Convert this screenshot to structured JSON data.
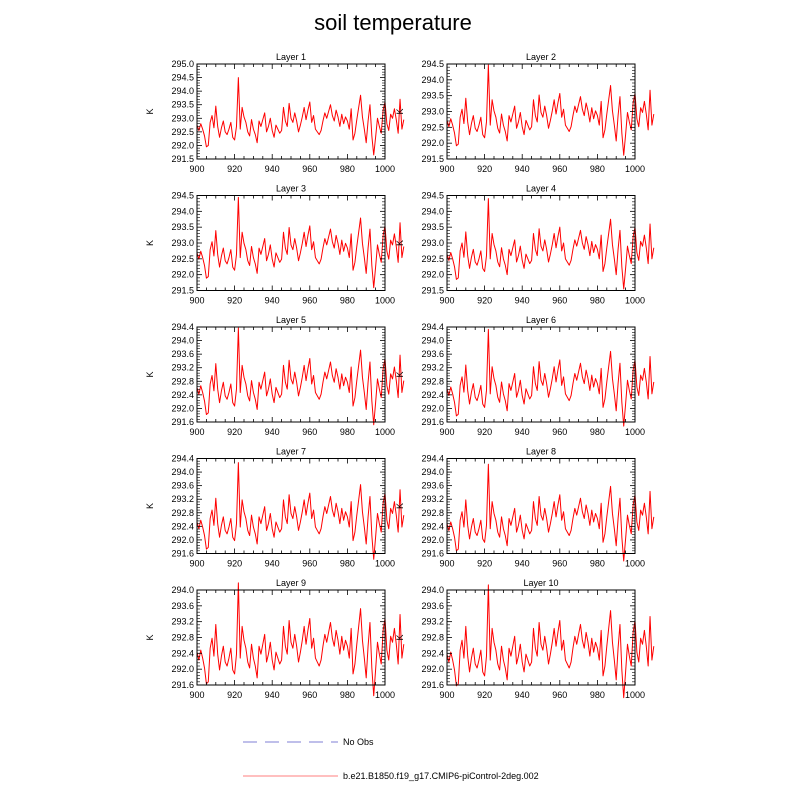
{
  "figure": {
    "title": "soil temperature",
    "series_color": "#ff0000",
    "obs_color": "#9999dd"
  },
  "legend": {
    "entries": [
      {
        "label": "No Obs",
        "style": "dashed",
        "color": "#9999dd"
      },
      {
        "label": "b.e21.B1850.f19_g17.CMIP6-piControl-2deg.002",
        "style": "solid",
        "color": "#ff9999"
      }
    ]
  },
  "chart_data": [
    {
      "type": "line",
      "title": "Layer 1",
      "xlabel": "",
      "ylabel": "K",
      "xlim": [
        900,
        1000
      ],
      "ylim": [
        291.5,
        295.0
      ],
      "xticks": [
        900,
        920,
        940,
        960,
        980,
        1000
      ],
      "yticks": [
        "291.5",
        "292.0",
        "292.5",
        "293.0",
        "293.5",
        "294.0",
        "294.5",
        "295.0"
      ],
      "offset": 0.0
    },
    {
      "type": "line",
      "title": "Layer 2",
      "xlabel": "",
      "ylabel": "K",
      "xlim": [
        900,
        1000
      ],
      "ylim": [
        291.5,
        294.5
      ],
      "xticks": [
        900,
        920,
        940,
        960,
        980,
        1000
      ],
      "yticks": [
        "291.5",
        "292.0",
        "292.5",
        "293.0",
        "293.5",
        "294.0",
        "294.5"
      ],
      "offset": -0.03
    },
    {
      "type": "line",
      "title": "Layer 3",
      "xlabel": "",
      "ylabel": "K",
      "xlim": [
        900,
        1000
      ],
      "ylim": [
        291.5,
        294.5
      ],
      "xticks": [
        900,
        920,
        940,
        960,
        980,
        1000
      ],
      "yticks": [
        "291.5",
        "292.0",
        "292.5",
        "293.0",
        "293.5",
        "294.0",
        "294.5"
      ],
      "offset": -0.06
    },
    {
      "type": "line",
      "title": "Layer 4",
      "xlabel": "",
      "ylabel": "K",
      "xlim": [
        900,
        1000
      ],
      "ylim": [
        291.5,
        294.5
      ],
      "xticks": [
        900,
        920,
        940,
        960,
        980,
        1000
      ],
      "yticks": [
        "291.5",
        "292.0",
        "292.5",
        "293.0",
        "293.5",
        "294.0",
        "294.5"
      ],
      "offset": -0.1
    },
    {
      "type": "line",
      "title": "Layer 5",
      "xlabel": "",
      "ylabel": "K",
      "xlim": [
        900,
        1000
      ],
      "ylim": [
        291.6,
        294.4
      ],
      "xticks": [
        900,
        920,
        940,
        960,
        980,
        1000
      ],
      "yticks": [
        "291.6",
        "292.0",
        "292.4",
        "292.8",
        "293.2",
        "293.6",
        "294.0",
        "294.4"
      ],
      "offset": -0.13
    },
    {
      "type": "line",
      "title": "Layer 6",
      "xlabel": "",
      "ylabel": "K",
      "xlim": [
        900,
        1000
      ],
      "ylim": [
        291.6,
        294.4
      ],
      "xticks": [
        900,
        920,
        940,
        960,
        980,
        1000
      ],
      "yticks": [
        "291.6",
        "292.0",
        "292.4",
        "292.8",
        "293.2",
        "293.6",
        "294.0",
        "294.4"
      ],
      "offset": -0.17
    },
    {
      "type": "line",
      "title": "Layer 7",
      "xlabel": "",
      "ylabel": "K",
      "xlim": [
        900,
        1000
      ],
      "ylim": [
        291.6,
        294.4
      ],
      "xticks": [
        900,
        920,
        940,
        960,
        980,
        1000
      ],
      "yticks": [
        "291.6",
        "292.0",
        "292.4",
        "292.8",
        "293.2",
        "293.6",
        "294.0",
        "294.4"
      ],
      "offset": -0.22
    },
    {
      "type": "line",
      "title": "Layer 8",
      "xlabel": "",
      "ylabel": "K",
      "xlim": [
        900,
        1000
      ],
      "ylim": [
        291.6,
        294.4
      ],
      "xticks": [
        900,
        920,
        940,
        960,
        980,
        1000
      ],
      "yticks": [
        "291.6",
        "292.0",
        "292.4",
        "292.8",
        "293.2",
        "293.6",
        "294.0",
        "294.4"
      ],
      "offset": -0.27
    },
    {
      "type": "line",
      "title": "Layer 9",
      "xlabel": "",
      "ylabel": "K",
      "xlim": [
        900,
        1000
      ],
      "ylim": [
        291.6,
        294.0
      ],
      "xticks": [
        900,
        920,
        940,
        960,
        980,
        1000
      ],
      "yticks": [
        "291.6",
        "292.0",
        "292.4",
        "292.8",
        "293.2",
        "293.6",
        "294.0"
      ],
      "offset": -0.32
    },
    {
      "type": "line",
      "title": "Layer 10",
      "xlabel": "",
      "ylabel": "K",
      "xlim": [
        900,
        1000
      ],
      "ylim": [
        291.6,
        294.0
      ],
      "xticks": [
        900,
        920,
        940,
        960,
        980,
        1000
      ],
      "yticks": [
        "291.6",
        "292.0",
        "292.4",
        "292.8",
        "293.2",
        "293.6",
        "294.0"
      ],
      "offset": -0.37
    }
  ],
  "series_base": {
    "name": "b.e21.B1850.f19_g17.CMIP6-piControl-2deg.002",
    "x_start": 900,
    "x_step": 1,
    "values": [
      292.75,
      292.55,
      292.8,
      292.6,
      292.35,
      291.95,
      292.0,
      292.85,
      293.1,
      292.65,
      293.45,
      292.7,
      292.3,
      292.65,
      292.9,
      292.5,
      292.4,
      292.6,
      292.85,
      292.3,
      292.2,
      292.7,
      294.5,
      292.6,
      293.4,
      293.05,
      292.85,
      292.5,
      292.35,
      292.95,
      292.6,
      292.4,
      292.1,
      292.9,
      292.7,
      292.95,
      293.2,
      292.5,
      292.7,
      293.0,
      292.55,
      292.3,
      292.75,
      292.6,
      292.45,
      292.55,
      293.4,
      292.9,
      292.7,
      293.55,
      293.0,
      292.85,
      293.2,
      292.9,
      292.5,
      292.75,
      293.05,
      293.4,
      292.95,
      293.3,
      293.6,
      292.85,
      293.1,
      292.6,
      292.5,
      292.4,
      292.55,
      292.9,
      293.2,
      293.0,
      293.25,
      293.5,
      293.1,
      292.9,
      293.3,
      293.05,
      292.7,
      293.15,
      292.8,
      293.05,
      292.9,
      292.6,
      293.35,
      292.2,
      292.45,
      292.95,
      293.4,
      293.85,
      293.05,
      292.6,
      292.1,
      292.9,
      293.5,
      292.35,
      291.65,
      292.3,
      293.0,
      292.7,
      292.45,
      293.3,
      293.6,
      292.8,
      292.55,
      293.15,
      293.0,
      293.35,
      292.95,
      292.45,
      293.7,
      292.6,
      292.95
    ]
  }
}
